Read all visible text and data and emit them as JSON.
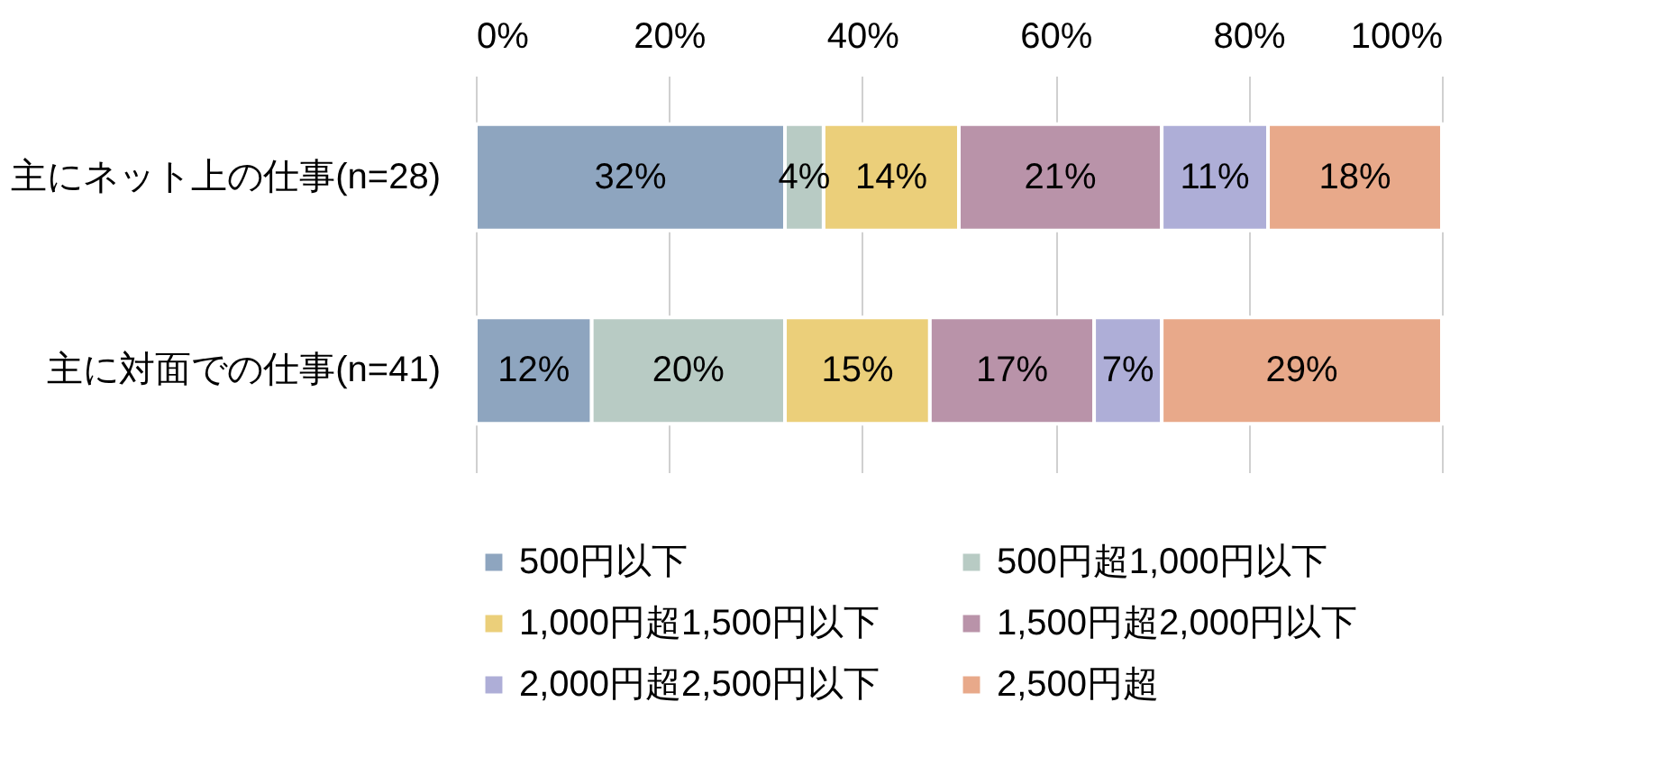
{
  "chart_data": {
    "type": "bar",
    "orientation": "horizontal",
    "stacked": true,
    "categories": [
      "主にネット上の仕事(n=28)",
      "主に対面での仕事(n=41)"
    ],
    "series": [
      {
        "name": "500円以下",
        "color": "#8ea5bf",
        "values": [
          32,
          12
        ],
        "value_labels": [
          "32%",
          "12%"
        ]
      },
      {
        "name": "500円超1,000円以下",
        "color": "#b8cbc4",
        "values": [
          4,
          20
        ],
        "value_labels": [
          "4%",
          "20%"
        ]
      },
      {
        "name": "1,000円超1,500円以下",
        "color": "#ebcf7a",
        "values": [
          14,
          15
        ],
        "value_labels": [
          "14%",
          "15%"
        ]
      },
      {
        "name": "1,500円超2,000円以下",
        "color": "#b993a9",
        "values": [
          21,
          17
        ],
        "value_labels": [
          "21%",
          "17%"
        ]
      },
      {
        "name": "2,000円超2,500円以下",
        "color": "#aeaed7",
        "values": [
          11,
          7
        ],
        "value_labels": [
          "11%",
          "7%"
        ]
      },
      {
        "name": "2,500円超",
        "color": "#e8a98a",
        "values": [
          18,
          29
        ],
        "value_labels": [
          "18%",
          "29%"
        ]
      }
    ],
    "xlim": [
      0,
      100
    ],
    "xticks": [
      {
        "value": 0,
        "label": "0%"
      },
      {
        "value": 20,
        "label": "20%"
      },
      {
        "value": 40,
        "label": "40%"
      },
      {
        "value": 60,
        "label": "60%"
      },
      {
        "value": 80,
        "label": "80%"
      },
      {
        "value": 100,
        "label": "100%"
      }
    ],
    "grid": "x",
    "legend": "bottom"
  }
}
